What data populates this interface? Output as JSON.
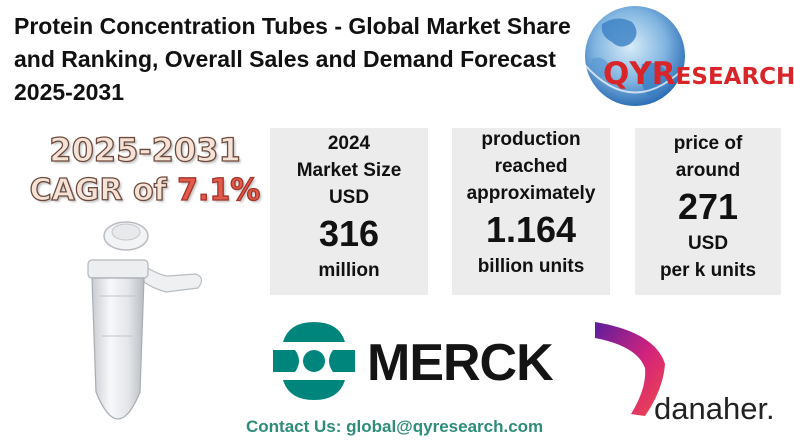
{
  "title": "Protein Concentration Tubes - Global Market Share and Ranking, Overall Sales and Demand Forecast 2025-2031",
  "qyr_logo": {
    "brand_initial": "QYR",
    "brand_rest": "ESEARCH",
    "colors": {
      "globe_blue": "#2f6fb6",
      "globe_light": "#a9d4f0",
      "brand_red": "#d7252a"
    }
  },
  "cagr": {
    "years": "2025-2031",
    "prefix": "CAGR of ",
    "value": "7.1%"
  },
  "stats": {
    "market_size": {
      "label_line1": "2024",
      "label_line2": "Market Size",
      "label_line3": "USD",
      "value": "316",
      "unit": "million"
    },
    "production": {
      "label_line1": "production",
      "label_line2": "reached",
      "label_line3": "approximately",
      "value": "1.164",
      "unit": "billion units"
    },
    "price": {
      "label_line1": "price of",
      "label_line2": "around",
      "value": "271",
      "unit_line1": "USD",
      "unit_line2": "per  k units"
    }
  },
  "company_logos": {
    "merck": {
      "name": "MERCK",
      "color": "#00857c"
    },
    "danaher": {
      "name": "danaher.",
      "colors": [
        "#5b1e9e",
        "#d4237a",
        "#f04a4a"
      ]
    }
  },
  "contact": "Contact Us: global@qyresearch.com",
  "image_icon": "microcentrifuge-tube-icon"
}
